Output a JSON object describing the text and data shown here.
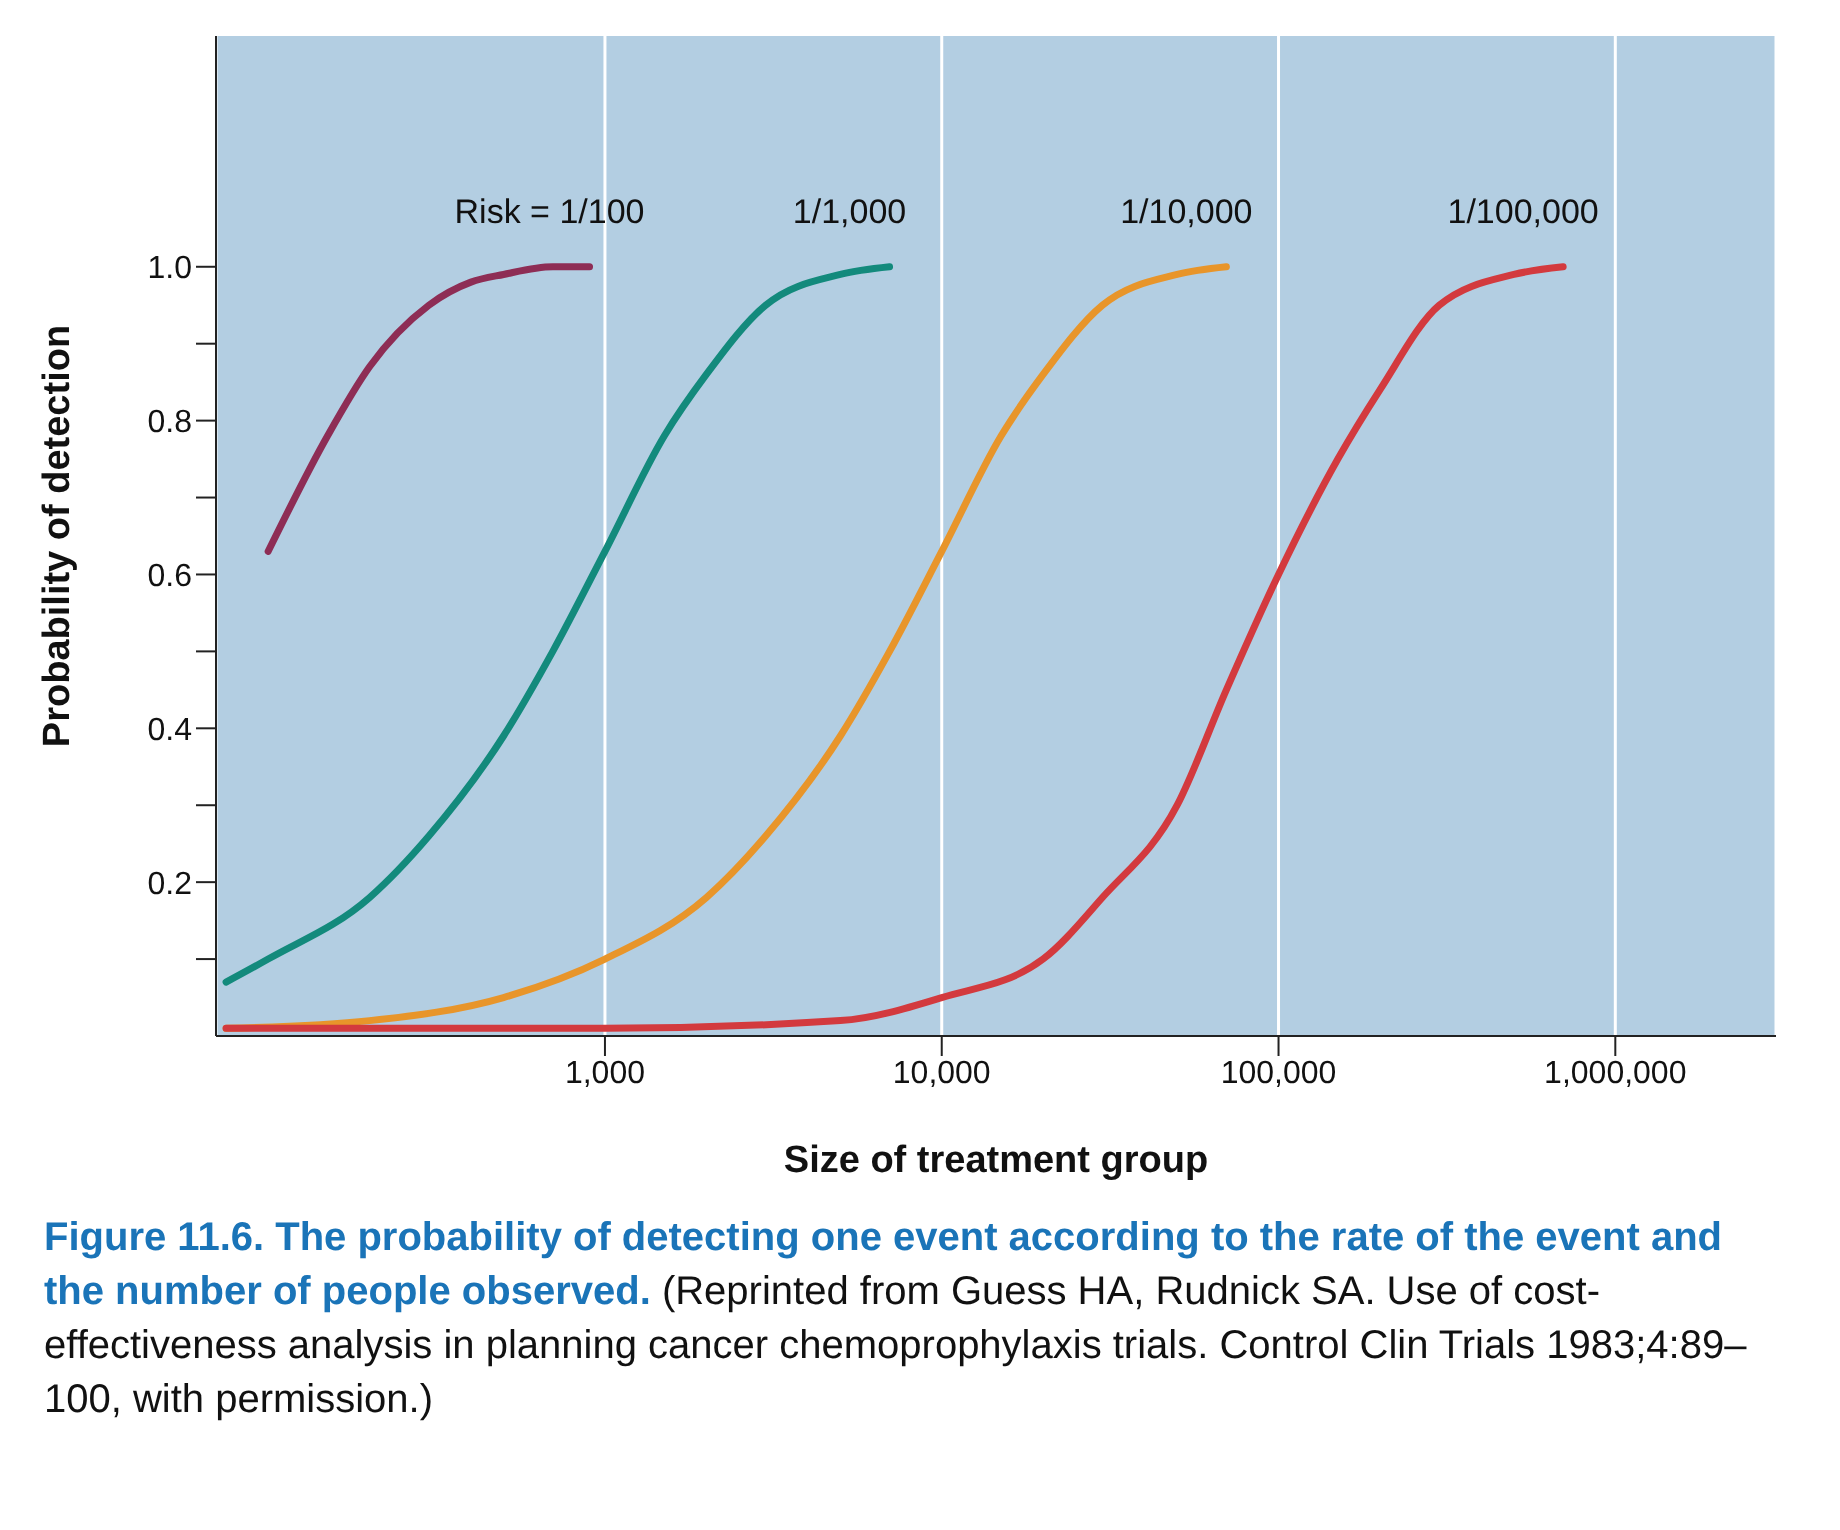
{
  "chart_data": {
    "type": "line",
    "title": "Figure 11.6. The probability of detecting one event according to the rate of the event and the number of people observed.",
    "annotations": [
      "(Reprinted from Guess HA, Rudnick SA. Use of cost-effectiveness analysis in planning cancer chemoprophylaxis trials. Control Clin Trials 1983;4:89–100, with permission.)"
    ],
    "xlabel": "Size of treatment group",
    "ylabel": "Probability of detection",
    "log": "x",
    "grid": "x",
    "legend": false,
    "marker": "none",
    "line_style": "solid",
    "xlim": [
      70,
      3000000
    ],
    "xticks": [
      {
        "value": 1000,
        "label": "1,000"
      },
      {
        "value": 10000,
        "label": "10,000"
      },
      {
        "value": 100000,
        "label": "100,000"
      },
      {
        "value": 1000000,
        "label": "1,000,000"
      }
    ],
    "ylim": [
      0,
      1.3
    ],
    "yticks": [
      {
        "value": 0.1,
        "label": null
      },
      0.2,
      {
        "value": 0.3,
        "label": null
      },
      0.4,
      {
        "value": 0.5,
        "label": null
      },
      0.6,
      {
        "value": 0.7,
        "label": null
      },
      0.8,
      {
        "value": 0.9,
        "label": null
      },
      {
        "value": 1,
        "label": "1.0"
      }
    ],
    "series": [
      {
        "name": "Risk = 1/100",
        "color": "#8e2d55",
        "x": [
          100,
          150,
          200,
          300,
          400,
          500,
          700,
          900
        ],
        "values": [
          0.63,
          0.78,
          0.87,
          0.95,
          0.98,
          0.99,
          1.0,
          1.0
        ]
      },
      {
        "name": "1/1,000",
        "color": "#138a7c",
        "x": [
          75,
          100,
          200,
          300,
          500,
          700,
          1000,
          1500,
          2000,
          3000,
          5000,
          7000
        ],
        "values": [
          0.07,
          0.1,
          0.18,
          0.26,
          0.39,
          0.5,
          0.63,
          0.78,
          0.86,
          0.95,
          0.99,
          1.0
        ]
      },
      {
        "name": "1/10,000",
        "color": "#e8952a",
        "x": [
          75,
          200,
          500,
          1000,
          2000,
          3000,
          5000,
          7000,
          10000,
          15000,
          20000,
          30000,
          50000,
          70000
        ],
        "values": [
          0.01,
          0.02,
          0.05,
          0.1,
          0.18,
          0.26,
          0.39,
          0.5,
          0.63,
          0.78,
          0.86,
          0.95,
          0.99,
          1.0
        ]
      },
      {
        "name": "1/100,000",
        "color": "#d33a3e",
        "x": [
          75,
          1000,
          5000,
          10000,
          20000,
          30000,
          50000,
          70000,
          100000,
          150000,
          200000,
          300000,
          500000,
          700000
        ],
        "values": [
          0.01,
          0.01,
          0.02,
          0.05,
          0.1,
          0.18,
          0.3,
          0.45,
          0.6,
          0.75,
          0.84,
          0.95,
          0.99,
          1.0
        ]
      }
    ]
  }
}
